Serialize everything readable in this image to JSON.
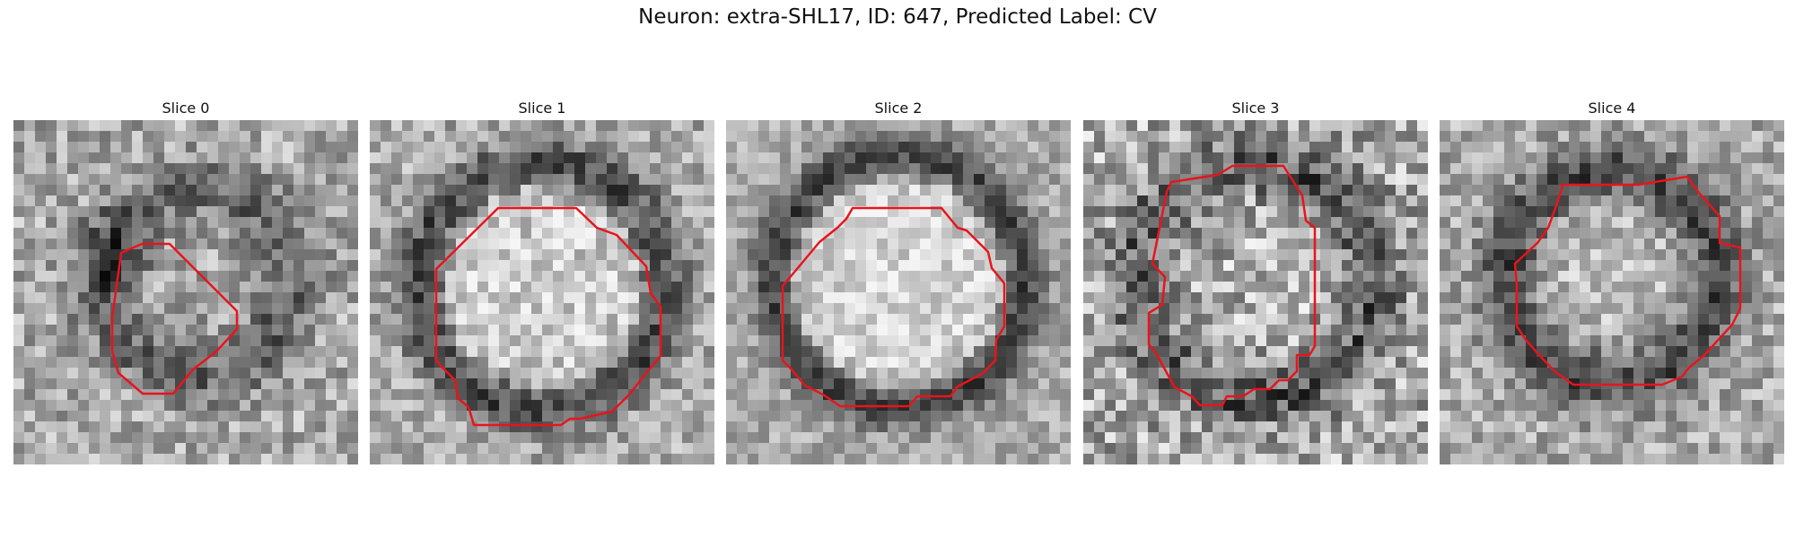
{
  "title": "Neuron: extra-SHL17, ID: 647, Predicted Label: CV",
  "panels": [
    {
      "title": "Slice 0"
    },
    {
      "title": "Slice 1"
    },
    {
      "title": "Slice 2"
    },
    {
      "title": "Slice 3"
    },
    {
      "title": "Slice 4"
    }
  ],
  "colors": {
    "contour": "#e8141c",
    "background": "#ffffff"
  },
  "image_kind": "grayscale microscopy slices with red segmentation contour"
}
